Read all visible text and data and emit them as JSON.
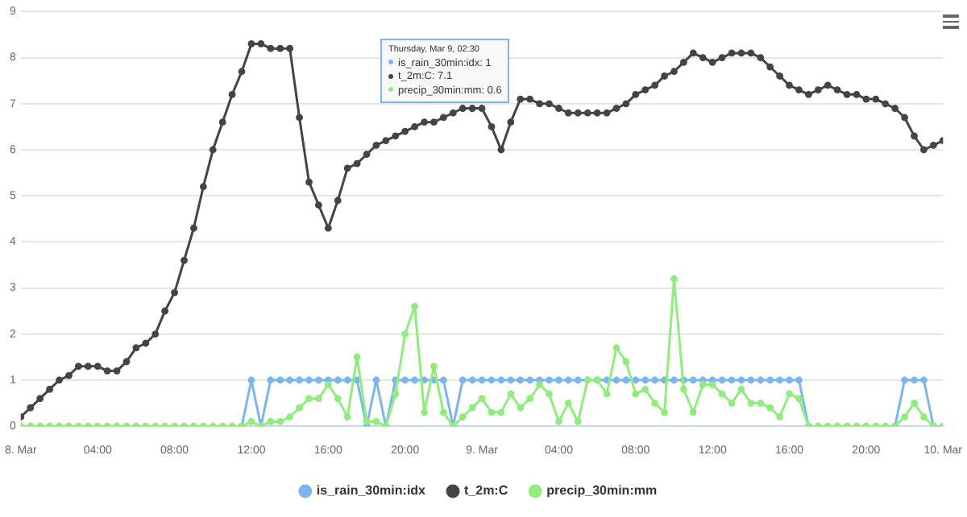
{
  "chart_data": {
    "type": "line",
    "x": [
      "--03-08T00:00",
      "--03-08T00:30",
      "--03-08T01:00",
      "--03-08T01:30",
      "--03-08T02:00",
      "--03-08T02:30",
      "--03-08T03:00",
      "--03-08T03:30",
      "--03-08T04:00",
      "--03-08T04:30",
      "--03-08T05:00",
      "--03-08T05:30",
      "--03-08T06:00",
      "--03-08T06:30",
      "--03-08T07:00",
      "--03-08T07:30",
      "--03-08T08:00",
      "--03-08T08:30",
      "--03-08T09:00",
      "--03-08T09:30",
      "--03-08T10:00",
      "--03-08T10:30",
      "--03-08T11:00",
      "--03-08T11:30",
      "--03-08T12:00",
      "--03-08T12:30",
      "--03-08T13:00",
      "--03-08T13:30",
      "--03-08T14:00",
      "--03-08T14:30",
      "--03-08T15:00",
      "--03-08T15:30",
      "--03-08T16:00",
      "--03-08T16:30",
      "--03-08T17:00",
      "--03-08T17:30",
      "--03-08T18:00",
      "--03-08T18:30",
      "--03-08T19:00",
      "--03-08T19:30",
      "--03-08T20:00",
      "--03-08T20:30",
      "--03-08T21:00",
      "--03-08T21:30",
      "--03-08T22:00",
      "--03-08T22:30",
      "--03-08T23:00",
      "--03-08T23:30",
      "--03-09T00:00",
      "--03-09T00:30",
      "--03-09T01:00",
      "--03-09T01:30",
      "--03-09T02:00",
      "--03-09T02:30",
      "--03-09T03:00",
      "--03-09T03:30",
      "--03-09T04:00",
      "--03-09T04:30",
      "--03-09T05:00",
      "--03-09T05:30",
      "--03-09T06:00",
      "--03-09T06:30",
      "--03-09T07:00",
      "--03-09T07:30",
      "--03-09T08:00",
      "--03-09T08:30",
      "--03-09T09:00",
      "--03-09T09:30",
      "--03-09T10:00",
      "--03-09T10:30",
      "--03-09T11:00",
      "--03-09T11:30",
      "--03-09T12:00",
      "--03-09T12:30",
      "--03-09T13:00",
      "--03-09T13:30",
      "--03-09T14:00",
      "--03-09T14:30",
      "--03-09T15:00",
      "--03-09T15:30",
      "--03-09T16:00",
      "--03-09T16:30",
      "--03-09T17:00",
      "--03-09T17:30",
      "--03-09T18:00",
      "--03-09T18:30",
      "--03-09T19:00",
      "--03-09T19:30",
      "--03-09T20:00",
      "--03-09T20:30",
      "--03-09T21:00",
      "--03-09T21:30",
      "--03-09T22:00",
      "--03-09T22:30",
      "--03-09T23:00",
      "--03-09T23:30",
      "--03-10T00:00"
    ],
    "series": [
      {
        "name": "is_rain_30min:idx",
        "color": "#7cb5ec",
        "values": [
          null,
          null,
          null,
          null,
          null,
          null,
          null,
          null,
          null,
          null,
          null,
          null,
          null,
          null,
          null,
          null,
          null,
          null,
          null,
          null,
          null,
          null,
          null,
          0,
          1,
          0,
          1,
          1,
          1,
          1,
          1,
          1,
          1,
          1,
          1,
          1,
          0,
          1,
          0,
          1,
          1,
          1,
          1,
          1,
          1,
          0,
          1,
          1,
          1,
          1,
          1,
          1,
          1,
          1,
          1,
          1,
          1,
          1,
          1,
          1,
          1,
          1,
          1,
          1,
          1,
          1,
          1,
          1,
          1,
          1,
          1,
          1,
          1,
          1,
          1,
          1,
          1,
          1,
          1,
          1,
          1,
          1,
          0,
          null,
          null,
          null,
          null,
          null,
          null,
          null,
          null,
          0,
          1,
          1,
          1,
          0,
          null
        ]
      },
      {
        "name": "t_2m:C",
        "color": "#434348",
        "values": [
          0.2,
          0.4,
          0.6,
          0.8,
          1.0,
          1.1,
          1.3,
          1.3,
          1.3,
          1.2,
          1.2,
          1.4,
          1.7,
          1.8,
          2.0,
          2.5,
          2.9,
          3.6,
          4.3,
          5.2,
          6.0,
          6.6,
          7.2,
          7.7,
          8.3,
          8.3,
          8.2,
          8.2,
          8.2,
          6.7,
          5.3,
          4.8,
          4.3,
          4.9,
          5.6,
          5.7,
          5.9,
          6.1,
          6.2,
          6.3,
          6.4,
          6.5,
          6.6,
          6.6,
          6.7,
          6.8,
          6.9,
          6.9,
          6.9,
          6.5,
          6.0,
          6.6,
          7.1,
          7.1,
          7.0,
          7.0,
          6.9,
          6.8,
          6.8,
          6.8,
          6.8,
          6.8,
          6.9,
          7.0,
          7.2,
          7.3,
          7.4,
          7.6,
          7.7,
          7.9,
          8.1,
          8.0,
          7.9,
          8.0,
          8.1,
          8.1,
          8.1,
          8.0,
          7.8,
          7.6,
          7.4,
          7.3,
          7.2,
          7.3,
          7.4,
          7.3,
          7.2,
          7.2,
          7.1,
          7.1,
          7.0,
          6.9,
          6.7,
          6.3,
          6.0,
          6.1,
          6.2
        ]
      },
      {
        "name": "precip_30min:mm",
        "color": "#90ed7d",
        "values": [
          0,
          0,
          0,
          0,
          0,
          0,
          0,
          0,
          0,
          0,
          0,
          0,
          0,
          0,
          0,
          0,
          0,
          0,
          0,
          0,
          0,
          0,
          0,
          0,
          0.1,
          0,
          0.1,
          0.1,
          0.2,
          0.4,
          0.6,
          0.6,
          0.9,
          0.6,
          0.2,
          1.5,
          0.1,
          0.1,
          0,
          0.7,
          2.0,
          2.6,
          0.3,
          1.3,
          0.3,
          0,
          0.2,
          0.4,
          0.6,
          0.3,
          0.3,
          0.7,
          0.4,
          0.6,
          0.9,
          0.7,
          0.1,
          0.5,
          0.1,
          1.0,
          1.0,
          0.7,
          1.7,
          1.4,
          0.7,
          0.8,
          0.5,
          0.3,
          3.2,
          0.8,
          0.3,
          0.9,
          0.9,
          0.7,
          0.5,
          0.8,
          0.5,
          0.5,
          0.4,
          0.2,
          0.7,
          0.6,
          0,
          0,
          0,
          0,
          0,
          0,
          0,
          0,
          0,
          0,
          0.2,
          0.5,
          0.2,
          0,
          0
        ]
      }
    ],
    "xlim": [
      "--03-08T00:00",
      "--03-10T00:00"
    ],
    "xticks": [
      {
        "value": "--03-08T00:00",
        "label": "8. Mar"
      },
      {
        "value": "--03-08T04:00",
        "label": "04:00"
      },
      {
        "value": "--03-08T08:00",
        "label": "08:00"
      },
      {
        "value": "--03-08T12:00",
        "label": "12:00"
      },
      {
        "value": "--03-08T16:00",
        "label": "16:00"
      },
      {
        "value": "--03-08T20:00",
        "label": "20:00"
      },
      {
        "value": "--03-09T00:00",
        "label": "9. Mar"
      },
      {
        "value": "--03-09T04:00",
        "label": "04:00"
      },
      {
        "value": "--03-09T08:00",
        "label": "08:00"
      },
      {
        "value": "--03-09T12:00",
        "label": "12:00"
      },
      {
        "value": "--03-09T16:00",
        "label": "16:00"
      },
      {
        "value": "--03-09T20:00",
        "label": "20:00"
      },
      {
        "value": "--03-10T00:00",
        "label": "10. Mar"
      }
    ],
    "ylim": [
      0,
      9
    ],
    "yticks": [
      0,
      1,
      2,
      3,
      4,
      5,
      6,
      7,
      8,
      9
    ],
    "grid": "y",
    "legend": "bottom",
    "marker": "circle",
    "line_style": "solid",
    "annotations": [
      "Thursday, Mar 9, 02:30",
      "is_rain_30min:idx: 1",
      "t_2m:C: 7.1",
      "precip_30min:mm: 0.6"
    ]
  }
}
